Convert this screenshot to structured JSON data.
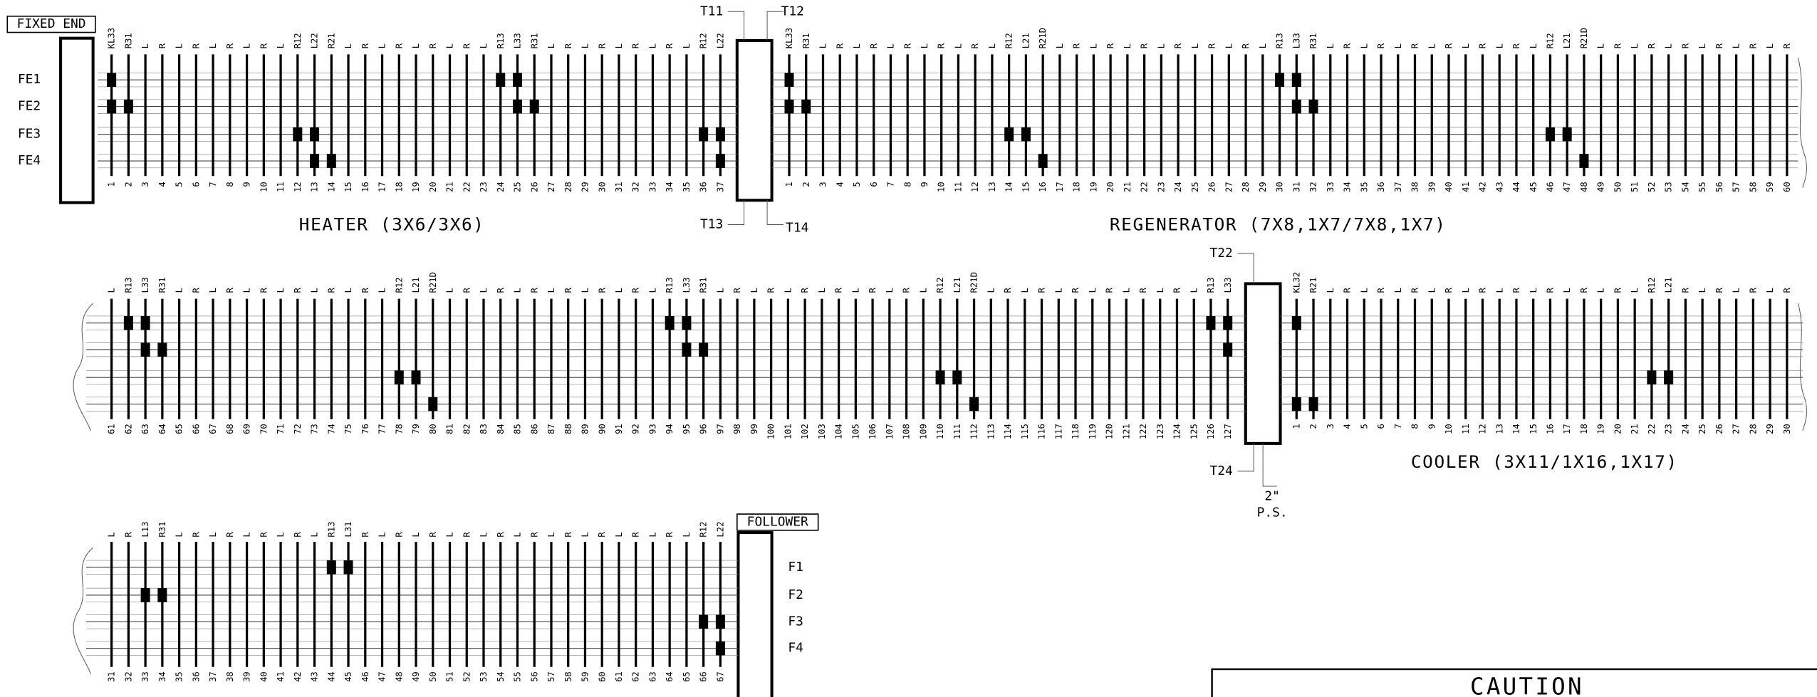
{
  "fixed_end": "FIXED END",
  "follower": "FOLLOWER",
  "fe_labels": [
    "FE1",
    "FE2",
    "FE3",
    "FE4"
  ],
  "f_labels": [
    "F1",
    "F2",
    "F3",
    "F4"
  ],
  "plate_labels": [
    "T11",
    "T12",
    "T13",
    "T14",
    "T22",
    "T24"
  ],
  "ps_labels": [
    "2\"",
    "P.S."
  ],
  "caution": "CAUTION",
  "sections": [
    {
      "title": "HEATER (3X6/3X6)",
      "tubes": [
        1,
        2,
        3,
        4,
        5,
        6,
        7,
        8,
        9,
        10,
        11,
        12,
        13,
        14,
        15,
        16,
        17,
        18,
        19,
        20,
        21,
        22,
        23,
        24,
        25,
        26,
        27,
        28,
        29,
        30,
        31,
        32,
        33,
        34,
        35,
        36,
        37
      ],
      "tags": [
        "KL33",
        "R31",
        "L",
        "R",
        "L",
        "R",
        "L",
        "R",
        "L",
        "R",
        "L",
        "R12",
        "L22",
        "R21",
        "L",
        "R",
        "L",
        "R",
        "L",
        "R",
        "L",
        "R",
        "L",
        "R13",
        "L33",
        "R31",
        "L",
        "R",
        "L",
        "R",
        "L",
        "R",
        "L",
        "R",
        "L",
        "R12",
        "L22"
      ]
    },
    {
      "title": "REGENERATOR (7X8,1X7/7X8,1X7)",
      "tubes": [
        1,
        2,
        3,
        4,
        5,
        6,
        7,
        8,
        9,
        10,
        11,
        12,
        13,
        14,
        15,
        16,
        17,
        18,
        19,
        20,
        21,
        22,
        23,
        24,
        25,
        26,
        27,
        28,
        29,
        30,
        31,
        32,
        33,
        34,
        35,
        36,
        37,
        38,
        39,
        40,
        41,
        42,
        43,
        44,
        45,
        46,
        47,
        48,
        49,
        50,
        51,
        52,
        53,
        54,
        55,
        56,
        57,
        58,
        59,
        60
      ],
      "tags": [
        "KL33",
        "R31",
        "L",
        "R",
        "L",
        "R",
        "L",
        "R",
        "L",
        "R",
        "L",
        "R",
        "L",
        "R12",
        "L21",
        "R21D",
        "L",
        "R",
        "L",
        "R",
        "L",
        "R",
        "L",
        "R",
        "L",
        "R",
        "L",
        "R",
        "L",
        "R13",
        "L33",
        "R31",
        "L",
        "R",
        "L",
        "R",
        "L",
        "R",
        "L",
        "R",
        "L",
        "R",
        "L",
        "R",
        "L",
        "R12",
        "L21",
        "R21D",
        "L",
        "R",
        "L",
        "R",
        "L",
        "R",
        "L",
        "R",
        "L",
        "R",
        "L",
        "R"
      ]
    },
    {
      "tubes": [
        61,
        62,
        63,
        64,
        65,
        66,
        67,
        68,
        69,
        70,
        71,
        72,
        73,
        74,
        75,
        76,
        77,
        78,
        79,
        80,
        81,
        82,
        83,
        84,
        85,
        86,
        87,
        88,
        89,
        90,
        91,
        92,
        93,
        94,
        95,
        96,
        97,
        98,
        99,
        100,
        101,
        102,
        103,
        104,
        105,
        106,
        107,
        108,
        109,
        110,
        111,
        112,
        113,
        114,
        115,
        116,
        117,
        118,
        119,
        120,
        121,
        122,
        123,
        124,
        125,
        126,
        127
      ],
      "tags": [
        "L",
        "R13",
        "L33",
        "R31",
        "L",
        "R",
        "L",
        "R",
        "L",
        "R",
        "L",
        "R",
        "L",
        "R",
        "L",
        "R",
        "L",
        "R12",
        "L21",
        "R21D",
        "L",
        "R",
        "L",
        "R",
        "L",
        "R",
        "L",
        "R",
        "L",
        "R",
        "L",
        "R",
        "L",
        "R13",
        "L33",
        "R31",
        "L",
        "R",
        "L",
        "R",
        "L",
        "R",
        "L",
        "R",
        "L",
        "R",
        "L",
        "R",
        "L",
        "R12",
        "L21",
        "R21D",
        "L",
        "R",
        "L",
        "R",
        "L",
        "R",
        "L",
        "R",
        "L",
        "R",
        "L",
        "R",
        "L",
        "R13",
        "L33"
      ]
    },
    {
      "title": "COOLER (3X11/1X16,1X17)",
      "tubes": [
        1,
        2,
        3,
        4,
        5,
        6,
        7,
        8,
        9,
        10,
        11,
        12,
        13,
        14,
        15,
        16,
        17,
        18,
        19,
        20,
        21,
        22,
        23,
        24,
        25,
        26,
        27,
        28,
        29,
        30
      ],
      "tags": [
        "KL32",
        "R21",
        "L",
        "R",
        "L",
        "R",
        "L",
        "R",
        "L",
        "R",
        "L",
        "R",
        "L",
        "R",
        "L",
        "R",
        "L",
        "R",
        "L",
        "R",
        "L",
        "R12",
        "L21",
        "R",
        "L",
        "R",
        "L",
        "R",
        "L",
        "R"
      ]
    },
    {
      "tubes": [
        31,
        32,
        33,
        34,
        35,
        36,
        37,
        38,
        39,
        40,
        41,
        42,
        43,
        44,
        45,
        46,
        47,
        48,
        49,
        50,
        51,
        52,
        53,
        54,
        55,
        56,
        57,
        58,
        59,
        60,
        61,
        62,
        63,
        64,
        65,
        66,
        67
      ],
      "tags": [
        "L",
        "R",
        "L13",
        "R31",
        "L",
        "R",
        "L",
        "R",
        "L",
        "R",
        "L",
        "R",
        "L",
        "R13",
        "L31",
        "R",
        "L",
        "R",
        "L",
        "R",
        "L",
        "R",
        "L",
        "R",
        "L",
        "R",
        "L",
        "R",
        "L",
        "R",
        "L",
        "R",
        "L",
        "R",
        "L",
        "R12",
        "L22"
      ]
    }
  ]
}
